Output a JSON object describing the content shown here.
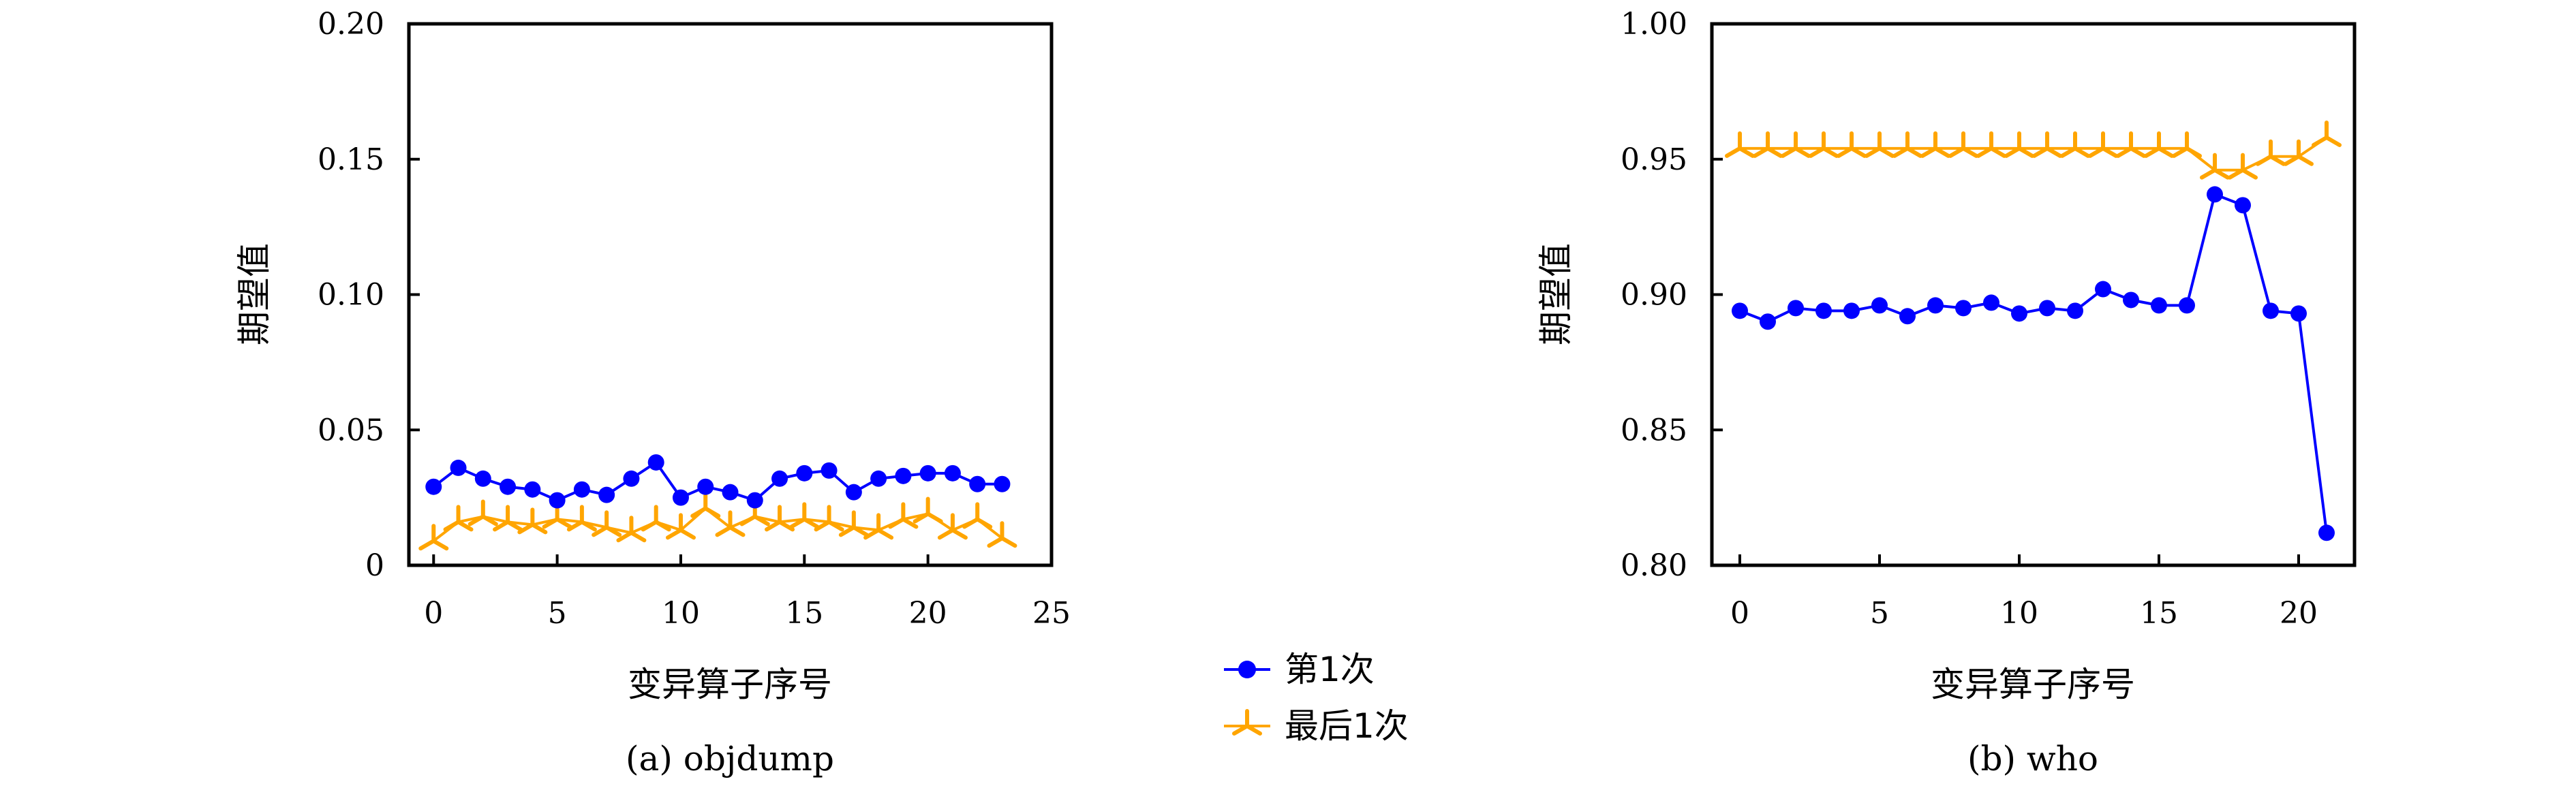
{
  "legend": {
    "items": [
      {
        "label": "第1次",
        "color": "#0000ff",
        "marker": "circle"
      },
      {
        "label": "最后1次",
        "color": "#ffa500",
        "marker": "tri-star"
      }
    ]
  },
  "chart_data": [
    {
      "type": "line",
      "caption": "(a) objdump",
      "xlabel": "变异算子序号",
      "ylabel": "期望值",
      "xlim": [
        -1,
        25
      ],
      "ylim": [
        0,
        0.2
      ],
      "xticks": [
        0,
        5,
        10,
        15,
        20,
        25
      ],
      "xtick_labels": [
        "0",
        "5",
        "10",
        "15",
        "20",
        "25"
      ],
      "yticks": [
        0,
        0.05,
        0.1,
        0.15,
        0.2
      ],
      "ytick_labels": [
        "0",
        "0.05",
        "0.10",
        "0.15",
        "0.20"
      ],
      "grid": false,
      "x": [
        0,
        1,
        2,
        3,
        4,
        5,
        6,
        7,
        8,
        9,
        10,
        11,
        12,
        13,
        14,
        15,
        16,
        17,
        18,
        19,
        20,
        21,
        22,
        23
      ],
      "series": [
        {
          "name": "第1次",
          "color": "#0000ff",
          "marker": "circle",
          "values": [
            0.029,
            0.036,
            0.032,
            0.029,
            0.028,
            0.024,
            0.028,
            0.026,
            0.032,
            0.038,
            0.025,
            0.029,
            0.027,
            0.024,
            0.032,
            0.034,
            0.035,
            0.027,
            0.032,
            0.033,
            0.034,
            0.034,
            0.03,
            0.03
          ]
        },
        {
          "name": "最后1次",
          "color": "#ffa500",
          "marker": "tri-star",
          "values": [
            0.009,
            0.016,
            0.018,
            0.016,
            0.015,
            0.017,
            0.016,
            0.014,
            0.012,
            0.016,
            0.013,
            0.021,
            0.014,
            0.018,
            0.016,
            0.017,
            0.016,
            0.014,
            0.013,
            0.017,
            0.019,
            0.013,
            0.017,
            0.01
          ]
        }
      ]
    },
    {
      "type": "line",
      "caption": "(b) who",
      "xlabel": "变异算子序号",
      "ylabel": "期望值",
      "xlim": [
        -1,
        22
      ],
      "ylim": [
        0.8,
        1.0
      ],
      "xticks": [
        0,
        5,
        10,
        15,
        20
      ],
      "xtick_labels": [
        "0",
        "5",
        "10",
        "15",
        "20"
      ],
      "yticks": [
        0.8,
        0.85,
        0.9,
        0.95,
        1.0
      ],
      "ytick_labels": [
        "0.80",
        "0.85",
        "0.90",
        "0.95",
        "1.00"
      ],
      "grid": false,
      "x": [
        0,
        1,
        2,
        3,
        4,
        5,
        6,
        7,
        8,
        9,
        10,
        11,
        12,
        13,
        14,
        15,
        16,
        17,
        18,
        19,
        20,
        21
      ],
      "series": [
        {
          "name": "第1次",
          "color": "#0000ff",
          "marker": "circle",
          "values": [
            0.894,
            0.89,
            0.895,
            0.894,
            0.894,
            0.896,
            0.892,
            0.896,
            0.895,
            0.897,
            0.893,
            0.895,
            0.894,
            0.902,
            0.898,
            0.896,
            0.896,
            0.937,
            0.933,
            0.894,
            0.893,
            0.812
          ]
        },
        {
          "name": "最后1次",
          "color": "#ffa500",
          "marker": "tri-star",
          "values": [
            0.954,
            0.954,
            0.954,
            0.954,
            0.954,
            0.954,
            0.954,
            0.954,
            0.954,
            0.954,
            0.954,
            0.954,
            0.954,
            0.954,
            0.954,
            0.954,
            0.954,
            0.946,
            0.946,
            0.951,
            0.951,
            0.958
          ]
        }
      ]
    }
  ]
}
